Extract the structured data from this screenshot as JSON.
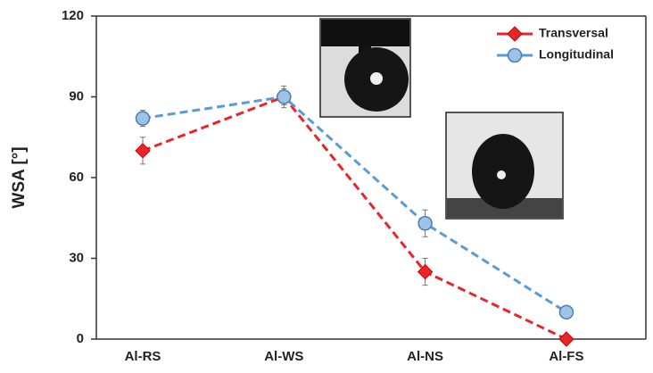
{
  "chart_data": {
    "type": "line",
    "y_label": "WSA [°]",
    "categories": [
      "Al-RS",
      "Al-WS",
      "Al-NS",
      "Al-FS"
    ],
    "ylim": [
      0,
      120
    ],
    "yticks": [
      0,
      30,
      60,
      90,
      120
    ],
    "legend": "upper right",
    "series": [
      {
        "name": "Transversal",
        "color": "#e8262a",
        "marker": "diamond",
        "values": [
          70,
          90,
          25,
          0
        ],
        "errors": [
          5,
          3,
          5,
          0
        ]
      },
      {
        "name": "Longitudinal",
        "color": "#5b9bd5",
        "marker": "circle",
        "values": [
          82,
          90,
          43,
          10
        ],
        "errors": [
          3,
          4,
          5,
          0
        ]
      }
    ]
  }
}
